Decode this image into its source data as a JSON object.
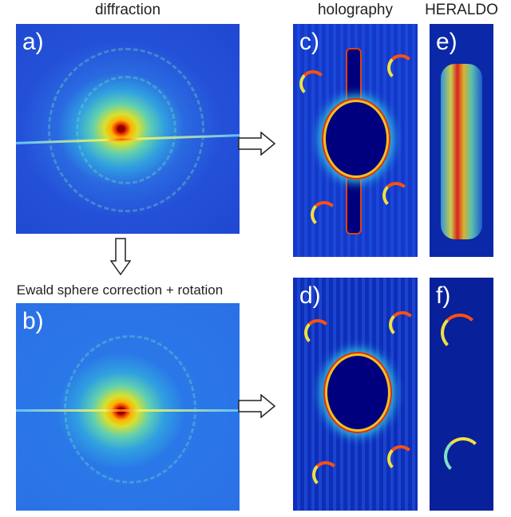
{
  "headers": {
    "diffraction": "diffraction",
    "holography": "holography",
    "heraldo": "HERALDO"
  },
  "caption": "Ewald sphere correction + rotation",
  "panels": {
    "a": "a)",
    "b": "b)",
    "c": "c)",
    "d": "d)",
    "e": "e)",
    "f": "f)"
  },
  "colormap": "jet",
  "colors": {
    "background_blue": "#2048d0",
    "hole": "#00007e",
    "edge": "#e03010"
  }
}
